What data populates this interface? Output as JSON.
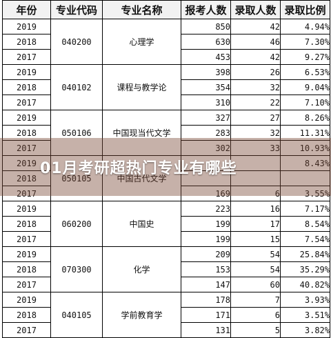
{
  "banner": {
    "title": "01月考研超热门专业有哪些"
  },
  "table": {
    "headers": [
      "年份",
      "专业代码",
      "专业名称",
      "报考人数",
      "录取人数",
      "录取比例"
    ],
    "groups": [
      {
        "code": "040200",
        "name": "心理学",
        "rows": [
          {
            "year": "2019",
            "applicants": "850",
            "admitted": "42",
            "ratio": "4.94%"
          },
          {
            "year": "2018",
            "applicants": "630",
            "admitted": "46",
            "ratio": "7.30%"
          },
          {
            "year": "2017",
            "applicants": "453",
            "admitted": "42",
            "ratio": "9.27%"
          }
        ]
      },
      {
        "code": "040102",
        "name": "课程与教学论",
        "rows": [
          {
            "year": "2019",
            "applicants": "398",
            "admitted": "26",
            "ratio": "6.53%"
          },
          {
            "year": "2018",
            "applicants": "354",
            "admitted": "32",
            "ratio": "9.04%"
          },
          {
            "year": "2017",
            "applicants": "310",
            "admitted": "22",
            "ratio": "7.10%"
          }
        ]
      },
      {
        "code": "050106",
        "name": "中国现当代文学",
        "rows": [
          {
            "year": "2019",
            "applicants": "327",
            "admitted": "27",
            "ratio": "8.26%"
          },
          {
            "year": "2018",
            "applicants": "283",
            "admitted": "32",
            "ratio": "11.31%"
          },
          {
            "year": "2017",
            "applicants": "302",
            "admitted": "33",
            "ratio": "10.93%"
          }
        ]
      },
      {
        "code": "050105",
        "name": "中国古代文学",
        "rows": [
          {
            "year": "2019",
            "applicants": "",
            "admitted": "",
            "ratio": "8.43%"
          },
          {
            "year": "2018",
            "applicants": "",
            "admitted": "",
            "ratio": ""
          },
          {
            "year": "2017",
            "applicants": "169",
            "admitted": "6",
            "ratio": "3.55%"
          }
        ]
      },
      {
        "code": "060200",
        "name": "中国史",
        "rows": [
          {
            "year": "2019",
            "applicants": "223",
            "admitted": "16",
            "ratio": "7.17%"
          },
          {
            "year": "2018",
            "applicants": "199",
            "admitted": "17",
            "ratio": "8.54%"
          },
          {
            "year": "2017",
            "applicants": "199",
            "admitted": "15",
            "ratio": "7.54%"
          }
        ]
      },
      {
        "code": "070300",
        "name": "化学",
        "rows": [
          {
            "year": "2019",
            "applicants": "209",
            "admitted": "54",
            "ratio": "25.84%"
          },
          {
            "year": "2018",
            "applicants": "153",
            "admitted": "54",
            "ratio": "35.29%"
          },
          {
            "year": "2017",
            "applicants": "147",
            "admitted": "60",
            "ratio": "40.82%"
          }
        ]
      },
      {
        "code": "040105",
        "name": "学前教育学",
        "rows": [
          {
            "year": "2019",
            "applicants": "178",
            "admitted": "7",
            "ratio": "3.93%"
          },
          {
            "year": "2018",
            "applicants": "171",
            "admitted": "6",
            "ratio": "3.51%"
          },
          {
            "year": "2017",
            "applicants": "131",
            "admitted": "5",
            "ratio": "3.82%"
          }
        ]
      }
    ]
  }
}
